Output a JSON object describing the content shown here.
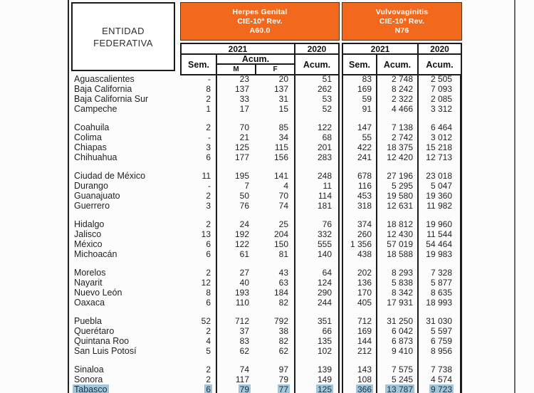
{
  "header": {
    "entity": {
      "line1": "ENTIDAD",
      "line2": "FEDERATIVA"
    },
    "herpes": {
      "title": "Herpes Genital",
      "rev": "CIE-10ª Rev.",
      "code": "A60.0"
    },
    "vulvo": {
      "title": "Vulvovaginitis",
      "rev": "CIE-10ª Rev.",
      "code": "N76"
    },
    "labels": {
      "year2021": "2021",
      "year2020": "2020",
      "sem": "Sem.",
      "acum": "Acum.",
      "m": "M",
      "f": "F"
    }
  },
  "colors": {
    "orange_header": "#F2691D",
    "border": "#1b1b1b",
    "highlight": "#A4C4D7",
    "highlight_text": "#14334E"
  },
  "table": {
    "column_keys": [
      "state",
      "herpes_2021_sem",
      "herpes_2021_acum_m",
      "herpes_2021_acum_f",
      "herpes_2020_acum",
      "vulvo_2021_sem",
      "vulvo_2021_acum",
      "vulvo_2020_acum"
    ],
    "groups": [
      {
        "rows": [
          {
            "state": "Aguascalientes",
            "values": [
              "-",
              "23",
              "20",
              "51",
              "83",
              "2 748",
              "2 505"
            ],
            "highlighted": false
          },
          {
            "state": "Baja California",
            "values": [
              "8",
              "137",
              "137",
              "262",
              "169",
              "8 242",
              "7 093"
            ],
            "highlighted": false
          },
          {
            "state": "Baja California Sur",
            "values": [
              "2",
              "33",
              "31",
              "53",
              "59",
              "2 322",
              "2 085"
            ],
            "highlighted": false
          },
          {
            "state": "Campeche",
            "values": [
              "1",
              "17",
              "15",
              "52",
              "91",
              "4 466",
              "3 312"
            ],
            "highlighted": false
          }
        ]
      },
      {
        "rows": [
          {
            "state": "Coahuila",
            "values": [
              "2",
              "70",
              "85",
              "122",
              "147",
              "7 138",
              "6 464"
            ],
            "highlighted": false
          },
          {
            "state": "Colima",
            "values": [
              "-",
              "21",
              "34",
              "68",
              "55",
              "2 742",
              "3 012"
            ],
            "highlighted": false
          },
          {
            "state": "Chiapas",
            "values": [
              "3",
              "125",
              "115",
              "201",
              "422",
              "18 375",
              "15 218"
            ],
            "highlighted": false
          },
          {
            "state": "Chihuahua",
            "values": [
              "6",
              "177",
              "156",
              "283",
              "241",
              "12 420",
              "12 713"
            ],
            "highlighted": false
          }
        ]
      },
      {
        "rows": [
          {
            "state": "Ciudad de México",
            "values": [
              "11",
              "195",
              "141",
              "248",
              "678",
              "27 196",
              "23 018"
            ],
            "highlighted": false
          },
          {
            "state": "Durango",
            "values": [
              "-",
              "7",
              "4",
              "11",
              "116",
              "5 295",
              "5 047"
            ],
            "highlighted": false
          },
          {
            "state": "Guanajuato",
            "values": [
              "2",
              "50",
              "70",
              "114",
              "453",
              "19 580",
              "19 360"
            ],
            "highlighted": false
          },
          {
            "state": "Guerrero",
            "values": [
              "3",
              "76",
              "74",
              "181",
              "318",
              "12 631",
              "11 982"
            ],
            "highlighted": false
          }
        ]
      },
      {
        "rows": [
          {
            "state": "Hidalgo",
            "values": [
              "2",
              "24",
              "25",
              "76",
              "374",
              "18 812",
              "19 960"
            ],
            "highlighted": false
          },
          {
            "state": "Jalisco",
            "values": [
              "13",
              "192",
              "204",
              "332",
              "260",
              "12 430",
              "11 544"
            ],
            "highlighted": false
          },
          {
            "state": "México",
            "values": [
              "6",
              "122",
              "150",
              "555",
              "1 356",
              "57 019",
              "54 464"
            ],
            "highlighted": false
          },
          {
            "state": "Michoacán",
            "values": [
              "6",
              "61",
              "81",
              "140",
              "438",
              "18 588",
              "19 983"
            ],
            "highlighted": false
          }
        ]
      },
      {
        "rows": [
          {
            "state": "Morelos",
            "values": [
              "2",
              "27",
              "43",
              "64",
              "202",
              "8 293",
              "7 328"
            ],
            "highlighted": false
          },
          {
            "state": "Nayarit",
            "values": [
              "12",
              "40",
              "63",
              "124",
              "136",
              "5 838",
              "5 877"
            ],
            "highlighted": false
          },
          {
            "state": "Nuevo León",
            "values": [
              "8",
              "193",
              "184",
              "290",
              "170",
              "8 342",
              "8 635"
            ],
            "highlighted": false
          },
          {
            "state": "Oaxaca",
            "values": [
              "6",
              "110",
              "82",
              "244",
              "405",
              "17 931",
              "18 993"
            ],
            "highlighted": false
          }
        ]
      },
      {
        "rows": [
          {
            "state": "Puebla",
            "values": [
              "52",
              "712",
              "792",
              "351",
              "712",
              "31 250",
              "31 030"
            ],
            "highlighted": false
          },
          {
            "state": "Querétaro",
            "values": [
              "2",
              "37",
              "38",
              "66",
              "169",
              "6 042",
              "5 597"
            ],
            "highlighted": false
          },
          {
            "state": "Quintana Roo",
            "values": [
              "4",
              "83",
              "82",
              "135",
              "144",
              "6 873",
              "6 759"
            ],
            "highlighted": false
          },
          {
            "state": "San Luis Potosí",
            "values": [
              "5",
              "62",
              "62",
              "102",
              "212",
              "9 410",
              "8 956"
            ],
            "highlighted": false
          }
        ]
      },
      {
        "rows": [
          {
            "state": "Sinaloa",
            "values": [
              "2",
              "74",
              "97",
              "139",
              "143",
              "7 575",
              "7 738"
            ],
            "highlighted": false
          },
          {
            "state": "Sonora",
            "values": [
              "2",
              "117",
              "79",
              "149",
              "108",
              "5 245",
              "4 574"
            ],
            "highlighted": false
          },
          {
            "state": "Tabasco",
            "values": [
              "6",
              "79",
              "77",
              "125",
              "366",
              "13 787",
              "9 723"
            ],
            "highlighted": true
          }
        ]
      }
    ]
  }
}
